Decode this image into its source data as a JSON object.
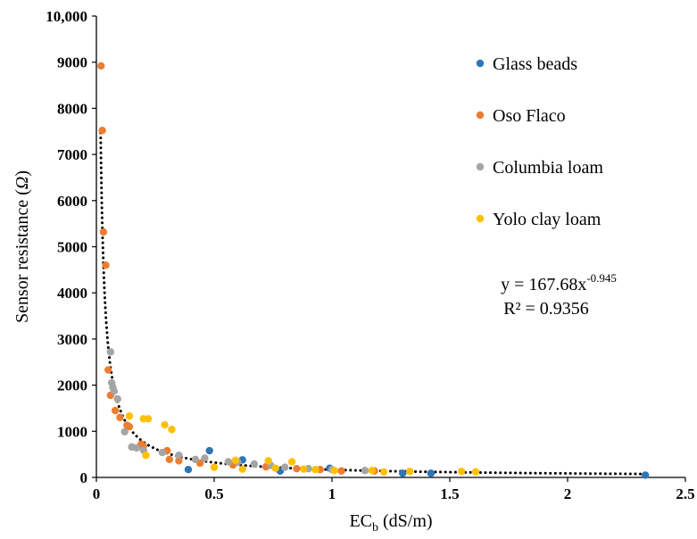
{
  "chart_data": {
    "type": "scatter",
    "xlabel_main": "EC",
    "xlabel_sub": "b",
    "xlabel_unit": " (dS/m)",
    "ylabel_main": "Sensor resistance (",
    "ylabel_symbol": "Ω",
    "ylabel_end": ")",
    "xlim": [
      0,
      2.5
    ],
    "ylim": [
      0,
      10000
    ],
    "xticks": [
      0,
      0.5,
      1,
      1.5,
      2,
      2.5
    ],
    "xtick_labels": [
      "0",
      "0.5",
      "1",
      "1.5",
      "2",
      "2.5"
    ],
    "yticks": [
      0,
      1000,
      2000,
      3000,
      4000,
      5000,
      6000,
      7000,
      8000,
      9000,
      10000
    ],
    "ytick_labels": [
      "0",
      "1000",
      "2000",
      "3000",
      "4000",
      "5000",
      "6000",
      "7000",
      "8000",
      "9000",
      "10,000"
    ],
    "grid": false,
    "legend_position": "top-right",
    "series": [
      {
        "name": "Glass beads",
        "color": "#2e75b6",
        "points": [
          [
            0.39,
            170
          ],
          [
            0.48,
            580
          ],
          [
            0.62,
            380
          ],
          [
            0.78,
            140
          ],
          [
            0.99,
            200
          ],
          [
            1.3,
            90
          ],
          [
            1.42,
            90
          ],
          [
            2.33,
            50
          ]
        ]
      },
      {
        "name": "Oso  Flaco",
        "color": "#ed7d31",
        "points": [
          [
            0.02,
            8920
          ],
          [
            0.025,
            7520
          ],
          [
            0.03,
            5320
          ],
          [
            0.04,
            4600
          ],
          [
            0.05,
            2330
          ],
          [
            0.06,
            1780
          ],
          [
            0.08,
            1450
          ],
          [
            0.1,
            1300
          ],
          [
            0.13,
            1130
          ],
          [
            0.14,
            1100
          ],
          [
            0.19,
            720
          ],
          [
            0.2,
            680
          ],
          [
            0.3,
            580
          ],
          [
            0.31,
            390
          ],
          [
            0.35,
            360
          ],
          [
            0.44,
            310
          ],
          [
            0.58,
            270
          ],
          [
            0.72,
            230
          ],
          [
            0.85,
            190
          ],
          [
            0.95,
            170
          ],
          [
            1.04,
            140
          ],
          [
            1.18,
            140
          ]
        ]
      },
      {
        "name": "Columbia loam",
        "color": "#a5a5a5",
        "points": [
          [
            0.06,
            2720
          ],
          [
            0.065,
            2050
          ],
          [
            0.07,
            1950
          ],
          [
            0.075,
            1870
          ],
          [
            0.09,
            1700
          ],
          [
            0.12,
            990
          ],
          [
            0.15,
            660
          ],
          [
            0.17,
            640
          ],
          [
            0.2,
            590
          ],
          [
            0.28,
            540
          ],
          [
            0.35,
            480
          ],
          [
            0.42,
            390
          ],
          [
            0.46,
            420
          ],
          [
            0.56,
            340
          ],
          [
            0.6,
            330
          ],
          [
            0.67,
            290
          ],
          [
            0.74,
            260
          ],
          [
            0.8,
            220
          ],
          [
            0.9,
            190
          ],
          [
            1.0,
            170
          ],
          [
            1.14,
            150
          ]
        ]
      },
      {
        "name": "Yolo clay loam",
        "color": "#ffc000",
        "points": [
          [
            0.14,
            1330
          ],
          [
            0.2,
            1270
          ],
          [
            0.22,
            1270
          ],
          [
            0.29,
            1140
          ],
          [
            0.32,
            1040
          ],
          [
            0.21,
            480
          ],
          [
            0.5,
            220
          ],
          [
            0.59,
            370
          ],
          [
            0.62,
            180
          ],
          [
            0.73,
            360
          ],
          [
            0.76,
            200
          ],
          [
            0.83,
            340
          ],
          [
            0.88,
            180
          ],
          [
            0.93,
            170
          ],
          [
            1.01,
            150
          ],
          [
            1.17,
            150
          ],
          [
            1.22,
            120
          ],
          [
            1.33,
            130
          ],
          [
            1.55,
            130
          ],
          [
            1.61,
            120
          ]
        ]
      }
    ],
    "trendline": {
      "type": "power",
      "a": 167.68,
      "b": -0.945,
      "x_range": [
        0.018,
        2.35
      ],
      "style": "dotted",
      "color": "#000000"
    },
    "annotation": {
      "eq_prefix": "y = 167.68x",
      "eq_exponent": "-0.945",
      "r2": "R² = 0.9356"
    }
  }
}
